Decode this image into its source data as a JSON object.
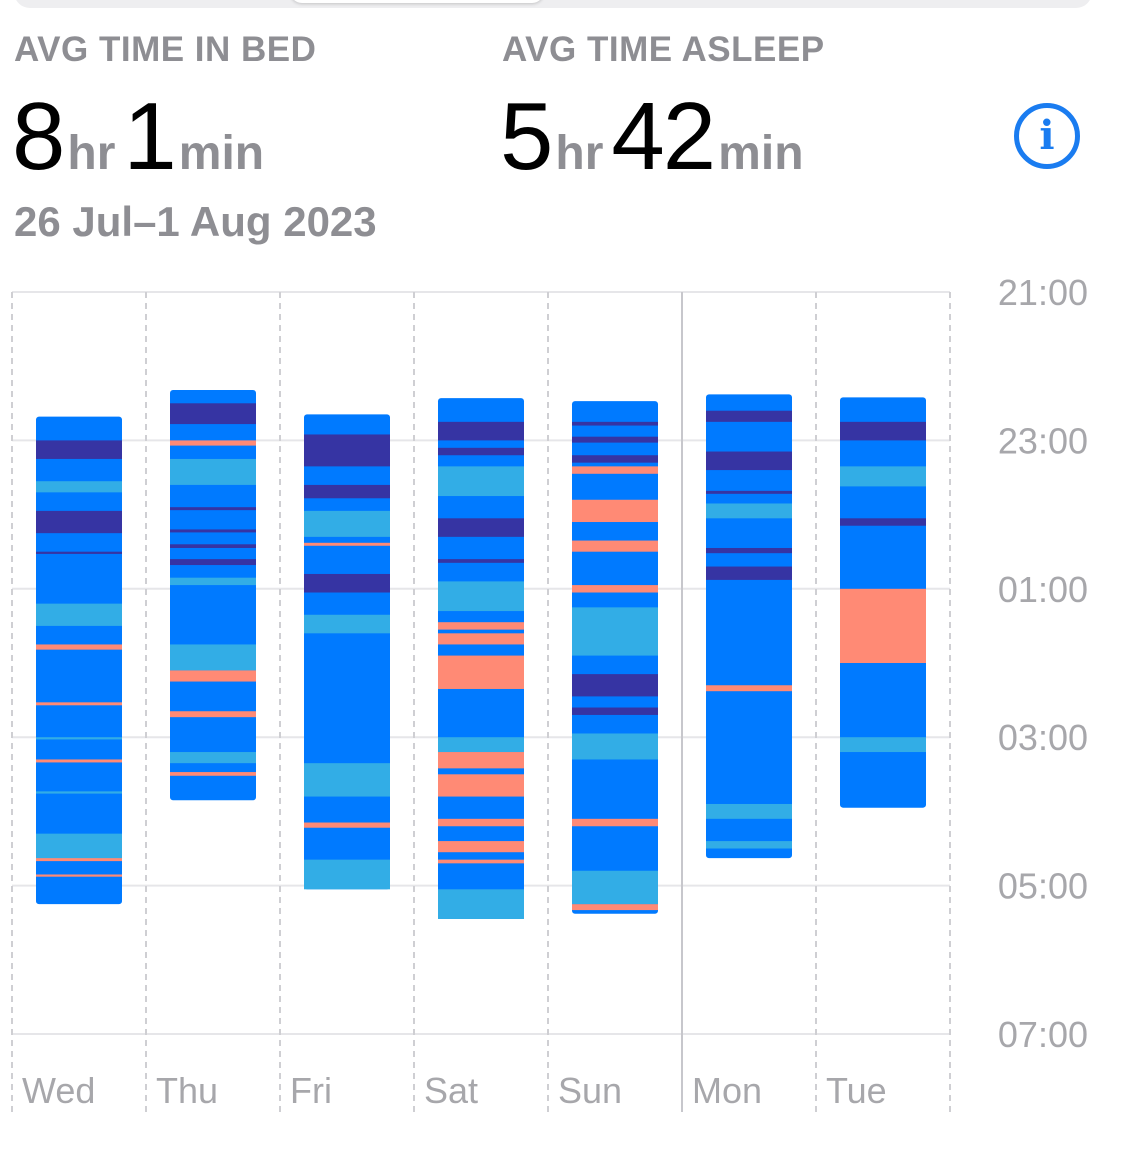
{
  "summary": {
    "avg_in_bed_label": "AVG TIME IN BED",
    "avg_in_bed_hours": "8",
    "avg_in_bed_minutes": "1",
    "avg_asleep_label": "AVG TIME ASLEEP",
    "avg_asleep_hours": "5",
    "avg_asleep_minutes": "42",
    "hr_unit": "hr",
    "min_unit": "min",
    "date_range": "26 Jul–1 Aug 2023",
    "info_icon": "info-icon"
  },
  "chart_data": {
    "type": "bar",
    "subtype": "sleep-stage-timeline",
    "title": "",
    "xlabel": "",
    "ylabel": "",
    "categories": [
      "Wed",
      "Thu",
      "Fri",
      "Sat",
      "Sun",
      "Mon",
      "Tue"
    ],
    "y_axis": {
      "ticks": [
        "21:00",
        "23:00",
        "01:00",
        "03:00",
        "05:00",
        "07:00"
      ],
      "range_hours_after_21": [
        0,
        10
      ],
      "position": "right"
    },
    "grid": true,
    "colors": {
      "core": "#007aff",
      "deep": "#3634a3",
      "rem": "#32ade6",
      "awake": "#ff8a75"
    },
    "nights": [
      {
        "day": "Wed",
        "start_hour": 1.68,
        "end_hour": 8.25,
        "segments": [
          {
            "stage": "deep",
            "start": 2.0,
            "end": 2.25
          },
          {
            "stage": "rem",
            "start": 2.55,
            "end": 2.7
          },
          {
            "stage": "deep",
            "start": 2.95,
            "end": 3.25
          },
          {
            "stage": "deep",
            "start": 3.5,
            "end": 3.53
          },
          {
            "stage": "rem",
            "start": 4.2,
            "end": 4.5
          },
          {
            "stage": "awake",
            "start": 4.75,
            "end": 4.82
          },
          {
            "stage": "awake",
            "start": 5.53,
            "end": 5.57
          },
          {
            "stage": "rem",
            "start": 6.0,
            "end": 6.03
          },
          {
            "stage": "awake",
            "start": 6.3,
            "end": 6.34
          },
          {
            "stage": "rem",
            "start": 6.73,
            "end": 6.76
          },
          {
            "stage": "rem",
            "start": 7.3,
            "end": 7.65
          },
          {
            "stage": "awake",
            "start": 7.63,
            "end": 7.67
          },
          {
            "stage": "awake",
            "start": 7.85,
            "end": 7.88
          }
        ]
      },
      {
        "day": "Thu",
        "start_hour": 1.32,
        "end_hour": 6.85,
        "segments": [
          {
            "stage": "deep",
            "start": 1.5,
            "end": 1.78
          },
          {
            "stage": "awake",
            "start": 2.0,
            "end": 2.07
          },
          {
            "stage": "rem",
            "start": 2.25,
            "end": 2.6
          },
          {
            "stage": "deep",
            "start": 2.9,
            "end": 2.94
          },
          {
            "stage": "deep",
            "start": 3.2,
            "end": 3.24
          },
          {
            "stage": "deep",
            "start": 3.4,
            "end": 3.45
          },
          {
            "stage": "deep",
            "start": 3.6,
            "end": 3.68
          },
          {
            "stage": "rem",
            "start": 3.85,
            "end": 3.95
          },
          {
            "stage": "rem",
            "start": 4.75,
            "end": 5.1
          },
          {
            "stage": "awake",
            "start": 5.1,
            "end": 5.25
          },
          {
            "stage": "awake",
            "start": 5.65,
            "end": 5.73
          },
          {
            "stage": "rem",
            "start": 6.2,
            "end": 6.35
          },
          {
            "stage": "awake",
            "start": 6.47,
            "end": 6.52
          }
        ]
      },
      {
        "day": "Fri",
        "start_hour": 1.65,
        "end_hour": 8.05,
        "segments": [
          {
            "stage": "deep",
            "start": 1.92,
            "end": 2.35
          },
          {
            "stage": "deep",
            "start": 2.6,
            "end": 2.78
          },
          {
            "stage": "rem",
            "start": 2.95,
            "end": 3.3
          },
          {
            "stage": "awake",
            "start": 3.38,
            "end": 3.42
          },
          {
            "stage": "deep",
            "start": 3.8,
            "end": 4.05
          },
          {
            "stage": "rem",
            "start": 4.35,
            "end": 4.6
          },
          {
            "stage": "rem",
            "start": 6.35,
            "end": 6.8
          },
          {
            "stage": "awake",
            "start": 7.15,
            "end": 7.22
          },
          {
            "stage": "rem",
            "start": 7.65,
            "end": 8.05
          }
        ]
      },
      {
        "day": "Sat",
        "start_hour": 1.43,
        "end_hour": 8.45,
        "segments": [
          {
            "stage": "deep",
            "start": 1.75,
            "end": 2.0
          },
          {
            "stage": "deep",
            "start": 2.1,
            "end": 2.2
          },
          {
            "stage": "rem",
            "start": 2.35,
            "end": 2.75
          },
          {
            "stage": "deep",
            "start": 3.05,
            "end": 3.3
          },
          {
            "stage": "deep",
            "start": 3.6,
            "end": 3.65
          },
          {
            "stage": "rem",
            "start": 3.9,
            "end": 4.3
          },
          {
            "stage": "awake",
            "start": 4.45,
            "end": 4.55
          },
          {
            "stage": "awake",
            "start": 4.6,
            "end": 4.75
          },
          {
            "stage": "awake",
            "start": 4.9,
            "end": 5.35
          },
          {
            "stage": "rem",
            "start": 6.0,
            "end": 6.2
          },
          {
            "stage": "awake",
            "start": 6.2,
            "end": 6.42
          },
          {
            "stage": "awake",
            "start": 6.5,
            "end": 6.8
          },
          {
            "stage": "awake",
            "start": 7.1,
            "end": 7.2
          },
          {
            "stage": "awake",
            "start": 7.4,
            "end": 7.55
          },
          {
            "stage": "awake",
            "start": 7.65,
            "end": 7.7
          },
          {
            "stage": "rem",
            "start": 8.05,
            "end": 8.45
          }
        ]
      },
      {
        "day": "Sun",
        "start_hour": 1.47,
        "end_hour": 8.38,
        "segments": [
          {
            "stage": "deep",
            "start": 1.75,
            "end": 1.8
          },
          {
            "stage": "deep",
            "start": 1.95,
            "end": 2.03
          },
          {
            "stage": "deep",
            "start": 2.2,
            "end": 2.3
          },
          {
            "stage": "awake",
            "start": 2.35,
            "end": 2.45
          },
          {
            "stage": "awake",
            "start": 2.8,
            "end": 3.1
          },
          {
            "stage": "awake",
            "start": 3.35,
            "end": 3.5
          },
          {
            "stage": "awake",
            "start": 3.95,
            "end": 4.05
          },
          {
            "stage": "rem",
            "start": 4.25,
            "end": 4.9
          },
          {
            "stage": "deep",
            "start": 5.15,
            "end": 5.45
          },
          {
            "stage": "deep",
            "start": 5.6,
            "end": 5.7
          },
          {
            "stage": "rem",
            "start": 5.95,
            "end": 6.3
          },
          {
            "stage": "awake",
            "start": 7.1,
            "end": 7.2
          },
          {
            "stage": "rem",
            "start": 7.8,
            "end": 8.25
          },
          {
            "stage": "awake",
            "start": 8.25,
            "end": 8.33
          }
        ]
      },
      {
        "day": "Mon",
        "start_hour": 1.38,
        "end_hour": 7.63,
        "segments": [
          {
            "stage": "deep",
            "start": 1.6,
            "end": 1.75
          },
          {
            "stage": "deep",
            "start": 2.15,
            "end": 2.4
          },
          {
            "stage": "deep",
            "start": 2.68,
            "end": 2.72
          },
          {
            "stage": "rem",
            "start": 2.85,
            "end": 3.05
          },
          {
            "stage": "deep",
            "start": 3.45,
            "end": 3.52
          },
          {
            "stage": "deep",
            "start": 3.7,
            "end": 3.88
          },
          {
            "stage": "awake",
            "start": 5.3,
            "end": 5.38
          },
          {
            "stage": "rem",
            "start": 6.9,
            "end": 7.1
          },
          {
            "stage": "rem",
            "start": 7.4,
            "end": 7.5
          }
        ]
      },
      {
        "day": "Tue",
        "start_hour": 1.42,
        "end_hour": 6.95,
        "segments": [
          {
            "stage": "deep",
            "start": 1.75,
            "end": 2.0
          },
          {
            "stage": "rem",
            "start": 2.35,
            "end": 2.62
          },
          {
            "stage": "deep",
            "start": 3.05,
            "end": 3.15
          },
          {
            "stage": "awake",
            "start": 4.0,
            "end": 5.0
          },
          {
            "stage": "rem",
            "start": 6.0,
            "end": 6.2
          }
        ]
      }
    ]
  }
}
